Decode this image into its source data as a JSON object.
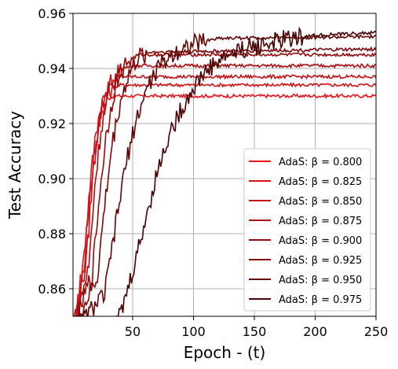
{
  "chart_data": {
    "type": "line",
    "xlabel": "Epoch - (t)",
    "ylabel": "Test Accuracy",
    "xlim": [
      1,
      250
    ],
    "ylim": [
      0.85,
      0.96
    ],
    "xticks": [
      50,
      100,
      150,
      200,
      250
    ],
    "xtick_labels": [
      "50",
      "100",
      "150",
      "200",
      "250"
    ],
    "yticks": [
      0.86,
      0.88,
      0.9,
      0.92,
      0.94,
      0.96
    ],
    "ytick_labels": [
      "0.86",
      "0.88",
      "0.90",
      "0.92",
      "0.94",
      "0.96"
    ],
    "grid": true,
    "legend_position": "lower right",
    "series": [
      {
        "name": "AdaS: β = 0.800",
        "color": "#e8151a",
        "final": 0.93,
        "x": [
          1,
          10,
          15,
          20,
          25,
          30,
          35,
          40,
          250
        ],
        "y": [
          0.845,
          0.868,
          0.895,
          0.915,
          0.925,
          0.929,
          0.93,
          0.93,
          0.93
        ]
      },
      {
        "name": "AdaS: β = 0.825",
        "color": "#d61218",
        "final": 0.934,
        "x": [
          1,
          10,
          15,
          20,
          25,
          30,
          35,
          40,
          250
        ],
        "y": [
          0.845,
          0.872,
          0.898,
          0.918,
          0.928,
          0.932,
          0.933,
          0.934,
          0.934
        ]
      },
      {
        "name": "AdaS: β = 0.850",
        "color": "#c41014",
        "final": 0.937,
        "x": [
          1,
          12,
          17,
          22,
          27,
          32,
          38,
          45,
          250
        ],
        "y": [
          0.845,
          0.87,
          0.9,
          0.92,
          0.93,
          0.935,
          0.937,
          0.937,
          0.937
        ]
      },
      {
        "name": "AdaS: β = 0.875",
        "color": "#ad0d10",
        "final": 0.941,
        "x": [
          1,
          14,
          19,
          24,
          30,
          36,
          42,
          50,
          250
        ],
        "y": [
          0.845,
          0.868,
          0.898,
          0.918,
          0.93,
          0.937,
          0.94,
          0.941,
          0.941
        ]
      },
      {
        "name": "AdaS: β = 0.900",
        "color": "#960a0c",
        "final": 0.945,
        "x": [
          1,
          17,
          23,
          28,
          34,
          40,
          47,
          55,
          250
        ],
        "y": [
          0.845,
          0.866,
          0.895,
          0.915,
          0.93,
          0.939,
          0.943,
          0.945,
          0.945
        ]
      },
      {
        "name": "AdaS: β = 0.925",
        "color": "#7d0709",
        "final": 0.947,
        "x": [
          1,
          21,
          27,
          33,
          40,
          47,
          55,
          65,
          250
        ],
        "y": [
          0.845,
          0.864,
          0.89,
          0.912,
          0.928,
          0.938,
          0.944,
          0.946,
          0.947
        ]
      },
      {
        "name": "AdaS: β = 0.950",
        "color": "#620505",
        "final": 0.9515,
        "x": [
          1,
          27,
          35,
          43,
          52,
          62,
          72,
          85,
          100,
          120,
          250
        ],
        "y": [
          0.845,
          0.858,
          0.88,
          0.902,
          0.92,
          0.933,
          0.941,
          0.946,
          0.949,
          0.951,
          0.9515
        ]
      },
      {
        "name": "AdaS: β = 0.975",
        "color": "#4a0203",
        "final": 0.953,
        "x": [
          1,
          40,
          50,
          60,
          70,
          80,
          90,
          100,
          110,
          125,
          140,
          160,
          180,
          200,
          250
        ],
        "y": [
          0.845,
          0.85,
          0.866,
          0.884,
          0.902,
          0.916,
          0.925,
          0.933,
          0.939,
          0.944,
          0.947,
          0.949,
          0.951,
          0.952,
          0.953
        ]
      }
    ]
  }
}
